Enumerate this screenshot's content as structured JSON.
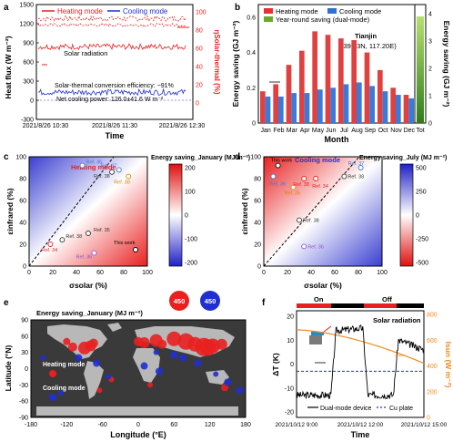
{
  "panels": {
    "a": {
      "letter": "a",
      "legend": [
        "Heating mode",
        "Cooling mode"
      ],
      "ylabel_left": "Heat flux (W m⁻²)",
      "ylabel_right": "ηSolar-thermal (%)",
      "xlabel": "Time",
      "xticks": [
        "2021/8/26 10:30",
        "2021/8/26 11:30",
        "2021/8/26 12:30"
      ],
      "yticks_left": [
        "-300",
        "0",
        "300",
        "600",
        "900",
        "1200",
        "1500"
      ],
      "yticks_right": [
        "0",
        "20",
        "40",
        "60",
        "80",
        "100"
      ],
      "annotations": [
        "Solar radiation",
        "Solar-thermal conversion efficiency: ~91%",
        "Net cooling power: 126.0±41.6 W m⁻²"
      ]
    },
    "b": {
      "letter": "b",
      "legend": [
        "Heating mode",
        "Cooling mode",
        "Year-round saving (dual-mode)"
      ],
      "location": "Tianjin",
      "coords": "(39.13N, 117.20E)",
      "ylabel_left": "Energy saving (GJ m⁻²)",
      "ylabel_right": "Energy saving (GJ m⁻²)",
      "xlabel": "Month",
      "yticks_left": [
        "0",
        "0.2",
        "0.4",
        "0.6"
      ],
      "yticks_right": [
        "0",
        "1",
        "2",
        "3",
        "4"
      ],
      "total_label": "Tot"
    },
    "c": {
      "letter": "c",
      "mode": "Heating mode",
      "cbar_title": "Energy saving_January (MJ m⁻²)",
      "cbar_ticks": [
        "200",
        "100",
        "0",
        "-100",
        "-200"
      ],
      "ylabel": "εinfrared (%)",
      "xlabel": "σsolar (%)",
      "ticks": [
        "0",
        "20",
        "40",
        "60",
        "80",
        "100"
      ],
      "refs": [
        "Ref. 36",
        "Ref. 37",
        "Ref. 38",
        "Ref. 38",
        "Ref. 35",
        "Ref. 34",
        "Ref. 36",
        "This work",
        "Ref. 38"
      ]
    },
    "d": {
      "letter": "d",
      "mode": "Cooling mode",
      "cbar_title": "Energy saving_July (MJ m⁻²)",
      "cbar_ticks": [
        "500",
        "250",
        "0",
        "-250",
        "-500"
      ],
      "ylabel": "εinfrared (%)",
      "xlabel": "σsolar (%)",
      "ticks": [
        "0",
        "20",
        "40",
        "60",
        "80",
        "100"
      ],
      "refs": [
        "This work",
        "Ref. 35",
        "Ref. 36",
        "Ref. 38",
        "Ref. 34",
        "Ref. 37",
        "Ref. 38",
        "Ref. 36",
        "Ref. 38"
      ]
    },
    "e": {
      "letter": "e",
      "title": "Energy saving_January (MJ m⁻²)",
      "bubble_labels": [
        "450",
        "450"
      ],
      "legend": [
        "Heating mode",
        "Cooling mode"
      ],
      "ylabel": "Latitude (°N)",
      "xlabel": "Longitude (°E)",
      "xticks": [
        "-180",
        "-120",
        "-60",
        "0",
        "60",
        "120",
        "180"
      ],
      "yticks": [
        "90",
        "60",
        "30",
        "0",
        "-30",
        "-60",
        "-90"
      ]
    },
    "f": {
      "letter": "f",
      "bar_labels": [
        "On",
        "Off"
      ],
      "ylabel_left": "ΔT (K)",
      "ylabel_right": "Isun (W m⁻²)",
      "xlabel": "Time",
      "xticks": [
        "2021/10/12 9:00",
        "2021/10/12 12:00",
        "2021/10/12 15:00"
      ],
      "yticks_left": [
        "20",
        "10",
        "0",
        "-10",
        "-20"
      ],
      "yticks_right": [
        "800",
        "600",
        "400",
        "200",
        "0"
      ],
      "annotations": [
        "Solar radiation"
      ],
      "legend": [
        "Dual-mode device",
        "Cu plate"
      ]
    }
  },
  "chart_data": [
    {
      "type": "line",
      "panel": "a",
      "title": "",
      "x": [
        "10:30",
        "11:00",
        "11:30",
        "12:00",
        "12:30"
      ],
      "series": [
        {
          "name": "Heating mode",
          "values": [
            815,
            830,
            840,
            845,
            850
          ]
        },
        {
          "name": "Cooling mode",
          "values": [
            126,
            130,
            120,
            128,
            125
          ]
        }
      ],
      "ylim": [
        -300,
        1500
      ]
    },
    {
      "type": "bar",
      "panel": "b",
      "categories": [
        "Jan",
        "Feb",
        "Mar",
        "Apr",
        "May",
        "Jun",
        "Jul",
        "Aug",
        "Sep",
        "Oct",
        "Nov",
        "Dec"
      ],
      "series": [
        {
          "name": "Heating mode",
          "values": [
            0.18,
            0.22,
            0.33,
            0.41,
            0.52,
            0.5,
            0.48,
            0.47,
            0.4,
            0.3,
            0.2,
            0.16
          ]
        },
        {
          "name": "Cooling mode",
          "values": [
            0.15,
            0.15,
            0.17,
            0.17,
            0.19,
            0.2,
            0.22,
            0.23,
            0.21,
            0.18,
            0.16,
            0.14
          ]
        }
      ],
      "year_round_total": 3.9,
      "ylim": [
        0,
        0.6
      ],
      "ylim_right": [
        0,
        4
      ]
    },
    {
      "type": "heatmap",
      "panel": "c",
      "xlim": [
        0,
        100
      ],
      "ylim": [
        0,
        100
      ],
      "clim": [
        -250,
        250
      ]
    },
    {
      "type": "heatmap",
      "panel": "d",
      "xlim": [
        0,
        100
      ],
      "ylim": [
        0,
        100
      ],
      "clim": [
        -500,
        500
      ]
    },
    {
      "type": "scatter",
      "panel": "e",
      "xlim": [
        -180,
        180
      ],
      "ylim": [
        -90,
        90
      ]
    },
    {
      "type": "line",
      "panel": "f",
      "x": [
        "9:00",
        "12:00",
        "15:00"
      ],
      "series": [
        {
          "name": "Dual-mode device",
          "values": [
            -13,
            15,
            -13
          ]
        },
        {
          "name": "Cu plate",
          "values": [
            -3,
            -3,
            -3
          ]
        },
        {
          "name": "Solar radiation",
          "values": [
            680,
            590,
            420
          ]
        }
      ],
      "ylim": [
        -20,
        20
      ],
      "ylim_right": [
        0,
        800
      ]
    }
  ]
}
